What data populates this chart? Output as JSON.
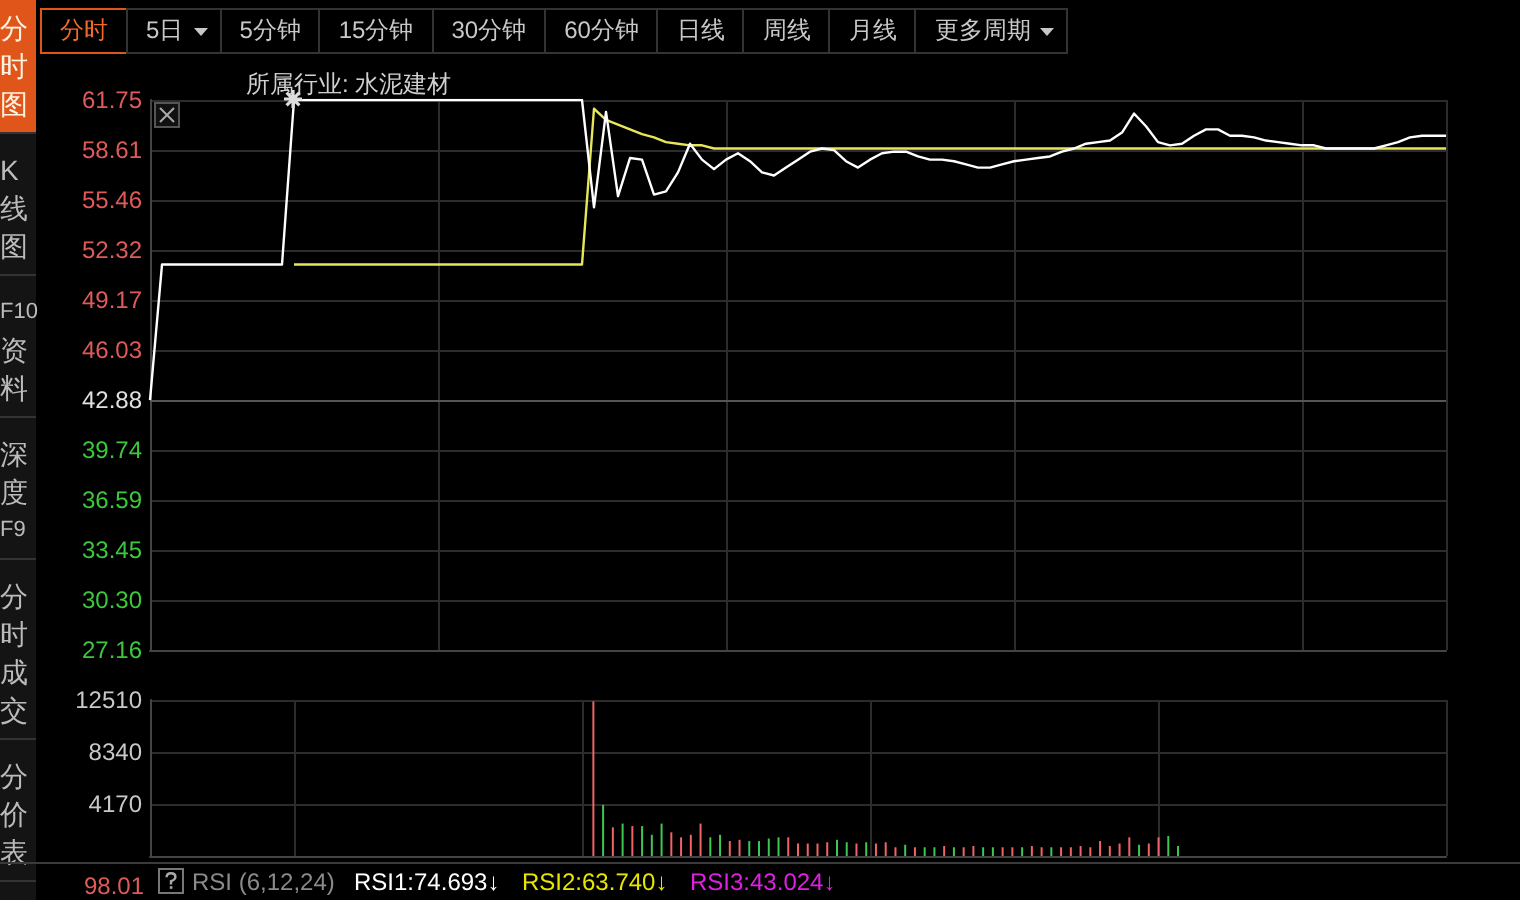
{
  "chart_data": [
    {
      "type": "other",
      "annotations": [
        "分时",
        "5日",
        "5分钟",
        "15分钟",
        "30分钟",
        "60分钟",
        "日线",
        "周线",
        "月线",
        "更多周期"
      ]
    },
    {
      "type": "other",
      "annotations": [
        "分时图",
        "K线图",
        "F10资料",
        "深度F9",
        "分时成交",
        "分价表"
      ]
    },
    {
      "type": "line",
      "title": "所属行业: 水泥建材",
      "categories": [
        null,
        null,
        null,
        null,
        null,
        null,
        null,
        null,
        null,
        null,
        null,
        null,
        null,
        null,
        null,
        null,
        null,
        null,
        null,
        null,
        null,
        null,
        null,
        null,
        null,
        null,
        null,
        null,
        null,
        null,
        null,
        null,
        null,
        null,
        null,
        null,
        null,
        null,
        null,
        null,
        null,
        null,
        null,
        null,
        null,
        null,
        null,
        null,
        null,
        null,
        null,
        null,
        null,
        null,
        null,
        null,
        null,
        null,
        null,
        null,
        null,
        null,
        null,
        null,
        null,
        null,
        null,
        null,
        null,
        null,
        null,
        null,
        null,
        null,
        null,
        null,
        null,
        null,
        null,
        null,
        null,
        null,
        null,
        null,
        null,
        null,
        null,
        null,
        null,
        null,
        null,
        null,
        null,
        null,
        null,
        null,
        null,
        null,
        null,
        null,
        null,
        null,
        null,
        null,
        null,
        null,
        null,
        null,
        null
      ],
      "series": [
        {
          "color": "#ffffff",
          "values": [
            42.88,
            51.4,
            51.4,
            51.4,
            51.4,
            51.4,
            51.4,
            51.4,
            51.4,
            51.4,
            51.4,
            51.4,
            61.75,
            61.75,
            61.75,
            61.75,
            61.75,
            61.75,
            61.75,
            61.75,
            61.75,
            61.75,
            61.75,
            61.75,
            61.75,
            61.75,
            61.75,
            61.75,
            61.75,
            61.75,
            61.75,
            61.75,
            61.75,
            61.75,
            61.75,
            61.75,
            61.75,
            55.0,
            61.0,
            55.7,
            58.1,
            58.0,
            55.8,
            56.0,
            57.2,
            59.0,
            58.0,
            57.4,
            58.0,
            58.4,
            57.9,
            57.2,
            57.0,
            57.5,
            58.0,
            58.5,
            58.7,
            58.6,
            57.9,
            57.5,
            58.0,
            58.4,
            58.5,
            58.5,
            58.2,
            58.0,
            58.0,
            57.9,
            57.7,
            57.5,
            57.5,
            57.7,
            57.9,
            58.0,
            58.1,
            58.2,
            58.5,
            58.7,
            59.0,
            59.1,
            59.2,
            59.7,
            60.9,
            60.1,
            59.1,
            58.9,
            59.0,
            59.5,
            59.9,
            59.9,
            59.5,
            59.5,
            59.4,
            59.2,
            59.1,
            59.0,
            58.9,
            58.9,
            58.7,
            58.7,
            58.7,
            58.7,
            58.7,
            58.9,
            59.1,
            59.4,
            59.5,
            59.5,
            59.5
          ]
        },
        {
          "color": "#e6e65a",
          "values": [
            null,
            null,
            null,
            null,
            null,
            null,
            null,
            null,
            null,
            null,
            null,
            null,
            51.4,
            51.4,
            51.4,
            51.4,
            51.4,
            51.4,
            51.4,
            51.4,
            51.4,
            51.4,
            51.4,
            51.4,
            51.4,
            51.4,
            51.4,
            51.4,
            51.4,
            51.4,
            51.4,
            51.4,
            51.4,
            51.4,
            51.4,
            51.4,
            51.4,
            61.2,
            60.5,
            60.2,
            59.9,
            59.6,
            59.4,
            59.1,
            59.0,
            58.9,
            58.9,
            58.7,
            58.7,
            58.7,
            58.7,
            58.7,
            58.7,
            58.7,
            58.7,
            58.7,
            58.7,
            58.7,
            58.7,
            58.7,
            58.7,
            58.7,
            58.7,
            58.7,
            58.7,
            58.7,
            58.7,
            58.7,
            58.7,
            58.7,
            58.7,
            58.7,
            58.7,
            58.7,
            58.7,
            58.7,
            58.7,
            58.7,
            58.7,
            58.7,
            58.7,
            58.7,
            58.7,
            58.7,
            58.7,
            58.7,
            58.7,
            58.7,
            58.7,
            58.7,
            58.7,
            58.7,
            58.7,
            58.7,
            58.7,
            58.7,
            58.7,
            58.7,
            58.7,
            58.7,
            58.7,
            58.7,
            58.7,
            58.7,
            58.7,
            58.7,
            58.7,
            58.7,
            58.7
          ]
        }
      ],
      "ylim": [
        27.16,
        61.75
      ],
      "yticks": [
        61.75,
        58.61,
        55.46,
        52.32,
        49.17,
        46.03,
        42.88,
        39.74,
        36.59,
        33.45,
        {
          "value": 30.3,
          "label": "30.30"
        },
        27.16
      ],
      "ref_lines": [
        {
          "axis": "y",
          "value": 42.88
        }
      ],
      "grid": true,
      "marker": "none",
      "tick_labels": "y"
    },
    {
      "type": "bar",
      "categories": [
        null,
        null,
        null,
        null,
        null,
        null,
        null,
        null,
        null,
        null,
        null,
        null,
        null,
        null,
        null,
        null,
        null,
        null,
        null,
        null,
        null,
        null,
        null,
        null,
        null,
        null,
        null,
        null,
        null,
        null,
        null,
        null,
        null,
        null,
        null,
        null,
        null,
        null,
        null,
        null,
        null,
        null,
        null,
        null,
        null,
        null,
        null,
        null,
        null,
        null,
        null,
        null,
        null,
        null,
        null,
        null,
        null,
        null,
        null,
        null,
        null,
        null,
        null,
        null,
        null,
        null,
        null,
        null,
        null,
        null,
        null,
        null,
        null,
        null,
        null,
        null,
        null,
        null,
        null,
        null,
        null,
        null,
        null,
        null,
        null,
        null,
        null,
        null,
        null,
        null,
        null,
        null,
        null,
        null,
        null,
        null,
        null,
        null,
        null,
        null,
        null,
        null,
        null,
        null,
        null,
        null,
        null,
        null,
        null,
        null,
        null,
        null,
        null,
        null,
        null,
        null,
        null,
        null,
        null,
        null,
        null,
        null,
        null,
        null,
        null,
        null,
        null,
        null,
        null,
        null,
        null,
        null,
        null
      ],
      "values": [
        null,
        null,
        null,
        null,
        null,
        null,
        null,
        null,
        null,
        null,
        null,
        null,
        null,
        null,
        null,
        null,
        null,
        null,
        null,
        null,
        null,
        null,
        null,
        null,
        null,
        null,
        null,
        null,
        null,
        null,
        null,
        null,
        null,
        null,
        null,
        null,
        null,
        null,
        null,
        null,
        null,
        null,
        null,
        null,
        null,
        12400,
        4100,
        2300,
        2600,
        2400,
        2400,
        1700,
        2600,
        1900,
        1500,
        1700,
        2600,
        1500,
        1700,
        1200,
        1300,
        1200,
        1200,
        1400,
        1500,
        1500,
        1000,
        1000,
        1000,
        1100,
        1300,
        1100,
        1000,
        1100,
        1000,
        1100,
        700,
        900,
        700,
        700,
        700,
        800,
        700,
        700,
        800,
        700,
        700,
        700,
        700,
        700,
        800,
        700,
        700,
        700,
        700,
        800,
        700,
        1200,
        800,
        1000,
        1500,
        900,
        1000,
        1500,
        1600,
        800,
        null,
        null,
        null,
        null,
        null,
        null,
        null,
        null,
        null,
        null,
        null,
        null,
        null,
        null,
        null,
        null,
        null,
        null,
        null,
        null,
        null,
        null,
        null,
        null,
        null,
        null,
        null
      ],
      "colors": [
        null,
        null,
        null,
        null,
        null,
        null,
        null,
        null,
        null,
        null,
        null,
        null,
        null,
        null,
        null,
        null,
        null,
        null,
        null,
        null,
        null,
        null,
        null,
        null,
        null,
        null,
        null,
        null,
        null,
        null,
        null,
        null,
        null,
        null,
        null,
        null,
        null,
        null,
        null,
        null,
        null,
        null,
        null,
        null,
        null,
        "#f06464",
        "#3cc850",
        "#f06464",
        "#3cc850",
        "#f06464",
        "#3cc850",
        "#3cc850",
        "#3cc850",
        "#f06464",
        "#f06464",
        "#f06464",
        "#f06464",
        "#3cc850",
        "#3cc850",
        "#f06464",
        "#f06464",
        "#3cc850",
        "#3cc850",
        "#3cc850",
        "#3cc850",
        "#f06464",
        "#f06464",
        "#f06464",
        "#f06464",
        "#f06464",
        "#3cc850",
        "#3cc850",
        "#f06464",
        "#3cc850",
        "#f06464",
        "#f06464",
        "#f06464",
        "#3cc850",
        "#f06464",
        "#3cc850",
        "#3cc850",
        "#f06464",
        "#3cc850",
        "#f06464",
        "#f06464",
        "#3cc850",
        "#3cc850",
        "#f06464",
        "#f06464",
        "#3cc850",
        "#f06464",
        "#f06464",
        "#3cc850",
        "#f06464",
        "#f06464",
        "#f06464",
        "#f06464",
        "#f06464",
        "#f06464",
        "#f06464",
        "#f06464",
        "#3cc850",
        "#f06464",
        "#f06464",
        "#3cc850",
        "#3cc850",
        null,
        null,
        null,
        null,
        null,
        null,
        null,
        null,
        null,
        null,
        null,
        null,
        null,
        null,
        null,
        null,
        null,
        null,
        null,
        null,
        null,
        null,
        null,
        null,
        null,
        null,
        null
      ],
      "ylim": [
        0,
        12510
      ],
      "yticks": [
        4170,
        8340,
        12510
      ],
      "grid": true,
      "tick_labels": "y"
    },
    {
      "type": "other",
      "title": "RSI (6,12,24)",
      "annotations": [
        "RSI1:74.693↓",
        "RSI2:63.740↓",
        "RSI3:43.024↓",
        "98.01"
      ]
    }
  ]
}
